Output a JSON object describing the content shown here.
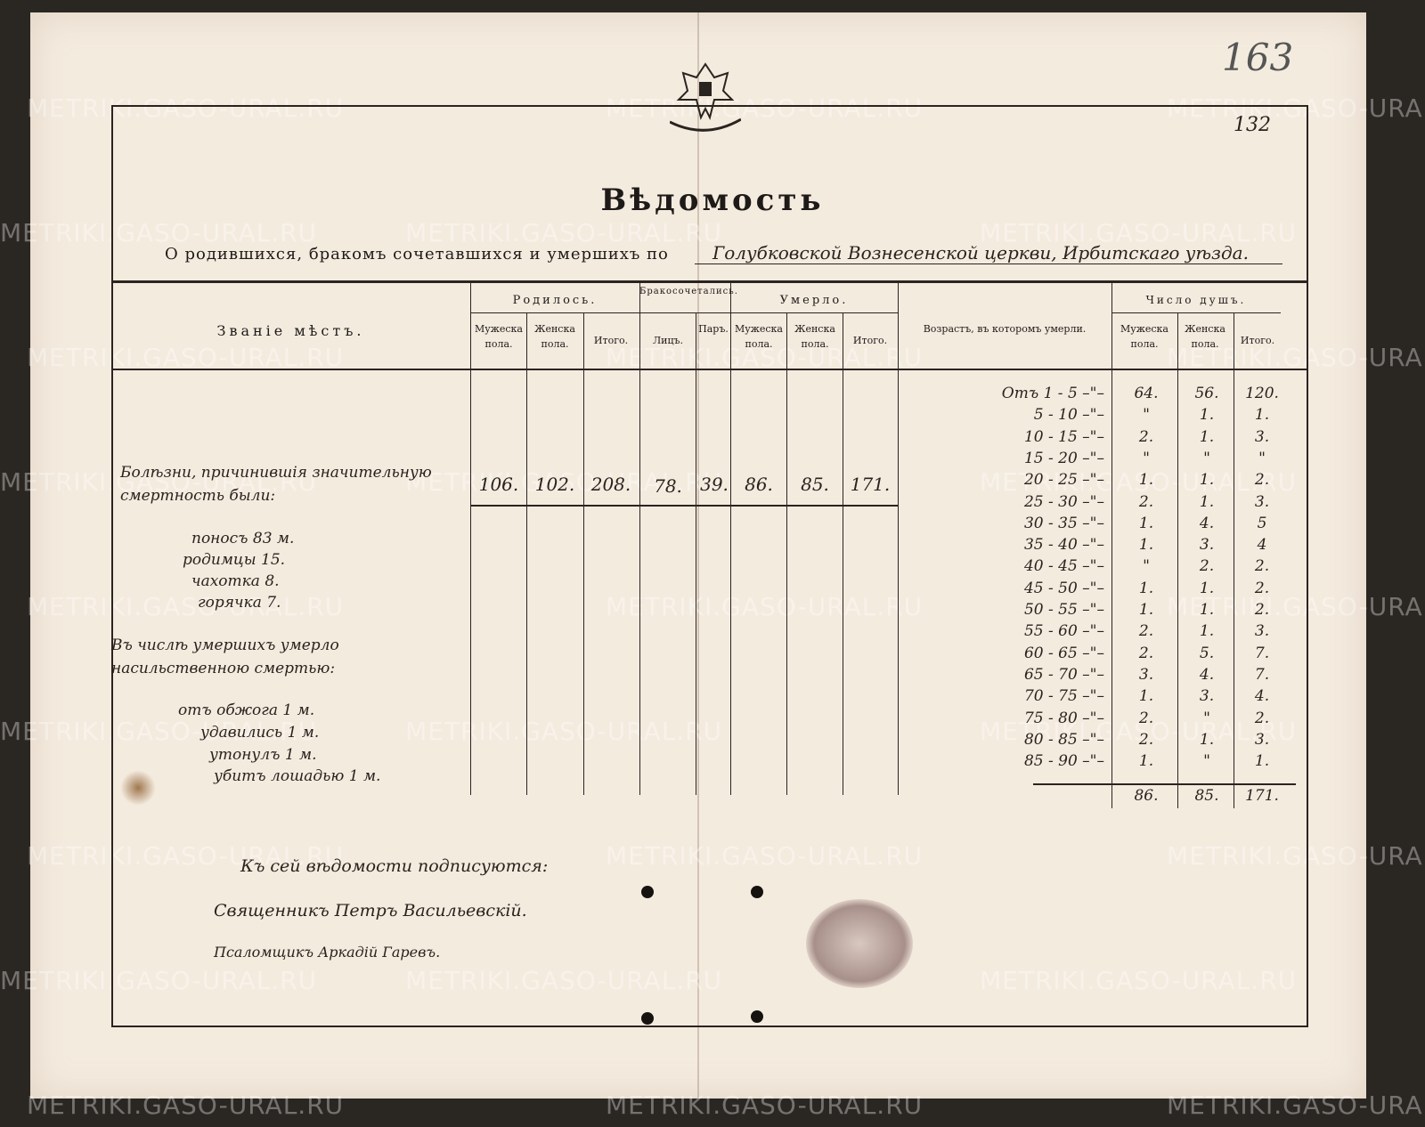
{
  "document": {
    "archive_page_number": "163",
    "sheet_number": "132",
    "title": "Вѣдомость",
    "subtitle": "О родившихся, бракомъ сочетавшихся и умершихъ по",
    "parish": "Голубковской Вознесенской церкви, Ирбитскаго уѣзда.",
    "watermark": "METRIKI.GASO-URAL.RU",
    "emblem": "double-headed-eagle-emblem"
  },
  "table": {
    "col_place": "Званіе мѣстъ.",
    "group_born": "Родилось.",
    "group_married": "Бракосочетались.",
    "group_died": "Умерло.",
    "group_souls": "Число душъ.",
    "col_age": "Возрастъ, въ которомъ умерли.",
    "male": "Мужеска пола.",
    "female": "Женска пола.",
    "total": "Итого.",
    "couples": "Лицъ.",
    "pairs": "Паръ.",
    "summary_row": {
      "born_male": "106.",
      "born_female": "102.",
      "born_total": "208.",
      "married_persons": "78.",
      "married_pairs": "39.",
      "died_male": "86.",
      "died_female": "85.",
      "died_total": "171."
    },
    "age_rows": [
      {
        "age": "Отъ 1 - 5 –\"–",
        "male": "64.",
        "female": "56.",
        "total": "120."
      },
      {
        "age": "5 - 10 –\"–",
        "male": "\"",
        "female": "1.",
        "total": "1."
      },
      {
        "age": "10 - 15 –\"–",
        "male": "2.",
        "female": "1.",
        "total": "3."
      },
      {
        "age": "15 - 20 –\"–",
        "male": "\"",
        "female": "\"",
        "total": "\""
      },
      {
        "age": "20 - 25 –\"–",
        "male": "1.",
        "female": "1.",
        "total": "2."
      },
      {
        "age": "25 - 30 –\"–",
        "male": "2.",
        "female": "1.",
        "total": "3."
      },
      {
        "age": "30 - 35 –\"–",
        "male": "1.",
        "female": "4.",
        "total": "5"
      },
      {
        "age": "35 - 40 –\"–",
        "male": "1.",
        "female": "3.",
        "total": "4"
      },
      {
        "age": "40 - 45 –\"–",
        "male": "\"",
        "female": "2.",
        "total": "2."
      },
      {
        "age": "45 - 50 –\"–",
        "male": "1.",
        "female": "1.",
        "total": "2."
      },
      {
        "age": "50 - 55 –\"–",
        "male": "1.",
        "female": "1.",
        "total": "2."
      },
      {
        "age": "55 - 60 –\"–",
        "male": "2.",
        "female": "1.",
        "total": "3."
      },
      {
        "age": "60 - 65 –\"–",
        "male": "2.",
        "female": "5.",
        "total": "7."
      },
      {
        "age": "65 - 70 –\"–",
        "male": "3.",
        "female": "4.",
        "total": "7."
      },
      {
        "age": "70 - 75 –\"–",
        "male": "1.",
        "female": "3.",
        "total": "4."
      },
      {
        "age": "75 - 80 –\"–",
        "male": "2.",
        "female": "\"",
        "total": "2."
      },
      {
        "age": "80 - 85 –\"–",
        "male": "2.",
        "female": "1.",
        "total": "3."
      },
      {
        "age": "85 - 90 –\"–",
        "male": "1.",
        "female": "\"",
        "total": "1."
      }
    ],
    "age_totals": {
      "male": "86.",
      "female": "85.",
      "total": "171."
    }
  },
  "notes": {
    "diseases_intro": "Болѣзни, причинившія значительную смертность были:",
    "diseases": [
      "поносъ 83 м.",
      "родимцы 15.",
      "чахотка 8.",
      "горячка 7."
    ],
    "violent_intro": "Въ числѣ умершихъ умерло насильственною смертью:",
    "violent": [
      "отъ обжога 1 м.",
      "удавились 1 м.",
      "утонулъ 1 м.",
      "убитъ лошадью 1 м."
    ]
  },
  "signatures": {
    "intro": "Къ сей вѣдомости подписуются:",
    "priest": "Священникъ Петръ Васильевскій.",
    "reader": "Псаломщикъ Аркадій Гаревъ."
  }
}
